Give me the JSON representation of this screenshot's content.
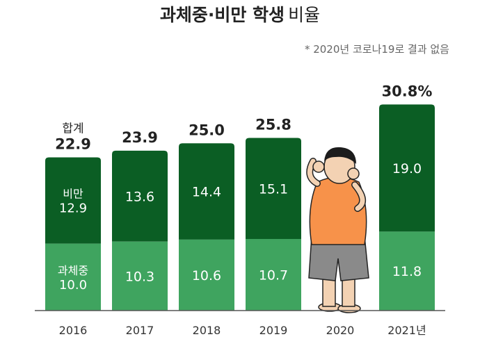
{
  "chart_data": {
    "type": "bar",
    "stacked": true,
    "title_bold": "과체중·비만 학생",
    "title_light": "비율",
    "note": "* 2020년 코로나19로 결과 없음",
    "categories": [
      "2016",
      "2017",
      "2018",
      "2019",
      "2020",
      "2021년"
    ],
    "series": [
      {
        "name": "과체중",
        "values": [
          10.0,
          10.3,
          10.6,
          10.7,
          null,
          11.8
        ],
        "color": "#3fa45f"
      },
      {
        "name": "비만",
        "values": [
          12.9,
          13.6,
          14.4,
          15.1,
          null,
          19.0
        ],
        "color": "#0b5e24"
      }
    ],
    "totals": [
      "22.9",
      "23.9",
      "25.0",
      "25.8",
      null,
      "30.8%"
    ],
    "total_label": "합계",
    "bottom_labels": [
      "10.0",
      "10.3",
      "10.6",
      "10.7",
      null,
      "11.8"
    ],
    "top_labels": [
      "12.9",
      "13.6",
      "14.4",
      "15.1",
      null,
      "19.0"
    ],
    "ylim": [
      0,
      33
    ],
    "colors": {
      "overweight": "#3fa45f",
      "obese": "#0b5e24",
      "axis": "#555555"
    },
    "illustration": "overweight-student-icon"
  }
}
